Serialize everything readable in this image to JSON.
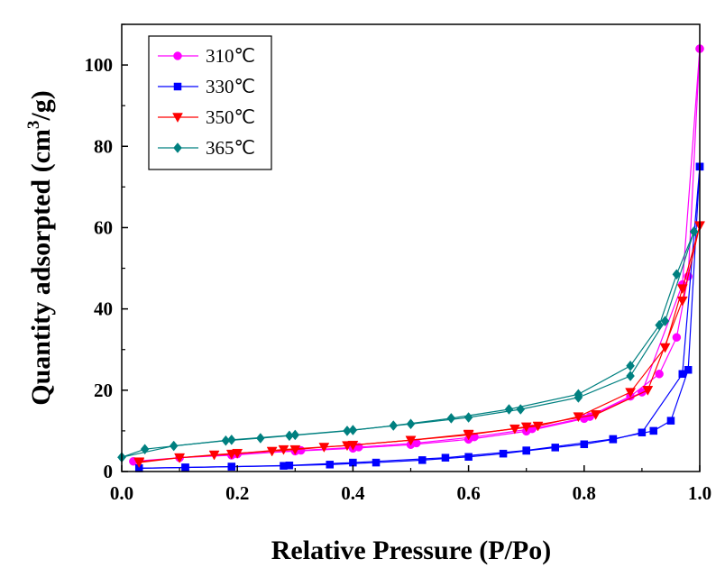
{
  "chart_data": {
    "type": "line",
    "title": "",
    "xlabel": "Relative Pressure (P/Po)",
    "ylabel_prefix": "Quantity adsorpted (cm",
    "ylabel_sup": "3",
    "ylabel_suffix": "/g)",
    "xlim": [
      0.0,
      1.0
    ],
    "ylim": [
      0,
      110
    ],
    "xticks": [
      0.0,
      0.2,
      0.4,
      0.6,
      0.8,
      1.0
    ],
    "xtick_labels": [
      "0.0",
      "0.2",
      "0.4",
      "0.6",
      "0.8",
      "1.0"
    ],
    "yticks": [
      0,
      20,
      40,
      60,
      80,
      100
    ],
    "ytick_labels": [
      "0",
      "20",
      "40",
      "60",
      "80",
      "100"
    ],
    "grid": false,
    "legend_position": "top-left",
    "series": [
      {
        "name": "310℃",
        "color": "#ff00ff",
        "marker": "circle",
        "adsorption": [
          [
            0.02,
            2.5
          ],
          [
            0.1,
            3.4
          ],
          [
            0.2,
            4.3
          ],
          [
            0.3,
            5.0
          ],
          [
            0.4,
            5.7
          ],
          [
            0.5,
            6.6
          ],
          [
            0.6,
            7.9
          ],
          [
            0.7,
            9.9
          ],
          [
            0.8,
            13.0
          ],
          [
            0.88,
            18.5
          ],
          [
            0.93,
            24.0
          ],
          [
            0.96,
            33.0
          ],
          [
            0.98,
            48.0
          ],
          [
            1.0,
            104.0
          ]
        ],
        "desorption": [
          [
            1.0,
            104.0
          ],
          [
            0.97,
            46.0
          ],
          [
            0.9,
            19.5
          ],
          [
            0.81,
            13.5
          ],
          [
            0.71,
            10.5
          ],
          [
            0.61,
            8.5
          ],
          [
            0.51,
            7.0
          ],
          [
            0.41,
            6.0
          ],
          [
            0.31,
            5.2
          ],
          [
            0.19,
            4.0
          ],
          [
            0.1,
            3.4
          ]
        ]
      },
      {
        "name": "330℃",
        "color": "#0000ff",
        "marker": "square",
        "adsorption": [
          [
            0.03,
            0.8
          ],
          [
            0.11,
            1.0
          ],
          [
            0.19,
            1.2
          ],
          [
            0.28,
            1.4
          ],
          [
            0.36,
            1.7
          ],
          [
            0.44,
            2.2
          ],
          [
            0.52,
            2.8
          ],
          [
            0.6,
            3.6
          ],
          [
            0.66,
            4.4
          ],
          [
            0.7,
            5.1
          ],
          [
            0.75,
            5.9
          ],
          [
            0.8,
            6.7
          ],
          [
            0.85,
            7.9
          ],
          [
            0.9,
            9.6
          ],
          [
            0.97,
            24.0
          ],
          [
            1.0,
            75.0
          ]
        ],
        "desorption": [
          [
            1.0,
            75.0
          ],
          [
            0.98,
            25.0
          ],
          [
            0.95,
            12.5
          ],
          [
            0.92,
            10.0
          ],
          [
            0.85,
            8.0
          ],
          [
            0.7,
            5.2
          ],
          [
            0.56,
            3.4
          ],
          [
            0.4,
            2.2
          ],
          [
            0.29,
            1.5
          ],
          [
            0.19,
            1.2
          ],
          [
            0.11,
            1.0
          ],
          [
            0.03,
            0.8
          ]
        ]
      },
      {
        "name": "350℃",
        "color": "#ff0000",
        "marker": "triangle-down",
        "adsorption": [
          [
            0.03,
            2.2
          ],
          [
            0.1,
            3.4
          ],
          [
            0.16,
            4.1
          ],
          [
            0.2,
            4.5
          ],
          [
            0.26,
            5.0
          ],
          [
            0.3,
            5.4
          ],
          [
            0.35,
            6.0
          ],
          [
            0.39,
            6.4
          ],
          [
            0.5,
            7.7
          ],
          [
            0.6,
            9.2
          ],
          [
            0.68,
            10.5
          ],
          [
            0.72,
            11.2
          ],
          [
            0.79,
            13.5
          ],
          [
            0.88,
            19.5
          ],
          [
            0.94,
            30.5
          ],
          [
            0.97,
            45.0
          ],
          [
            1.0,
            60.5
          ]
        ],
        "desorption": [
          [
            1.0,
            60.5
          ],
          [
            0.97,
            42.0
          ],
          [
            0.91,
            20.0
          ],
          [
            0.82,
            14.0
          ],
          [
            0.7,
            11.0
          ],
          [
            0.6,
            9.0
          ],
          [
            0.5,
            7.7
          ],
          [
            0.4,
            6.5
          ],
          [
            0.28,
            5.4
          ],
          [
            0.19,
            4.3
          ],
          [
            0.1,
            3.4
          ],
          [
            0.03,
            2.4
          ]
        ]
      },
      {
        "name": "365℃",
        "color": "#008080",
        "marker": "diamond",
        "adsorption": [
          [
            0.0,
            3.5
          ],
          [
            0.09,
            6.3
          ],
          [
            0.18,
            7.6
          ],
          [
            0.24,
            8.2
          ],
          [
            0.29,
            8.8
          ],
          [
            0.39,
            10.0
          ],
          [
            0.47,
            11.3
          ],
          [
            0.57,
            13.1
          ],
          [
            0.67,
            15.3
          ],
          [
            0.79,
            19.0
          ],
          [
            0.88,
            26.0
          ],
          [
            0.93,
            36.0
          ],
          [
            0.96,
            48.5
          ],
          [
            0.99,
            59.0
          ]
        ],
        "desorption": [
          [
            0.99,
            59.0
          ],
          [
            0.94,
            37.0
          ],
          [
            0.88,
            23.5
          ],
          [
            0.79,
            18.2
          ],
          [
            0.69,
            15.3
          ],
          [
            0.6,
            13.3
          ],
          [
            0.5,
            11.7
          ],
          [
            0.4,
            10.2
          ],
          [
            0.3,
            9.0
          ],
          [
            0.19,
            7.8
          ],
          [
            0.04,
            5.5
          ],
          [
            0.0,
            3.5
          ]
        ]
      }
    ]
  }
}
